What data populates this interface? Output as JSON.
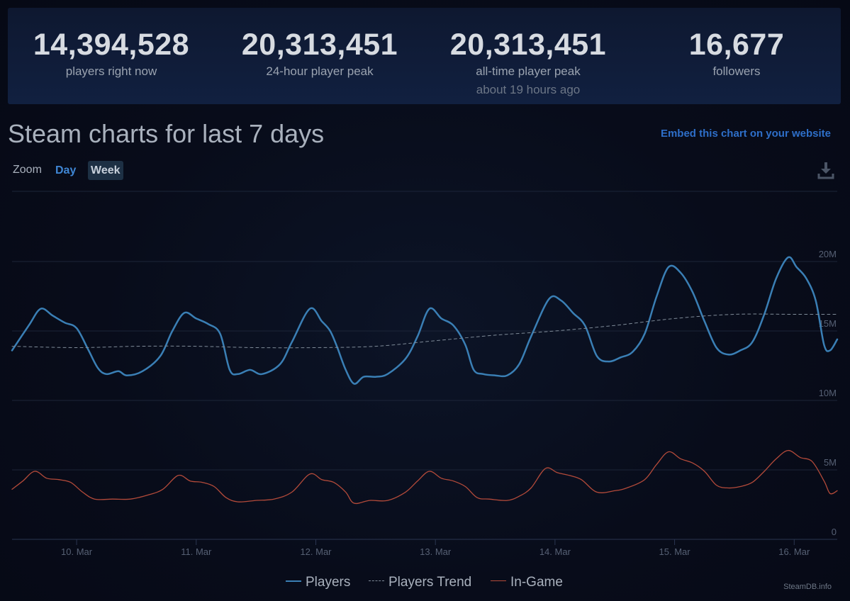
{
  "stats": [
    {
      "value": "14,394,528",
      "label": "players right now",
      "sub": ""
    },
    {
      "value": "20,313,451",
      "label": "24-hour player peak",
      "sub": ""
    },
    {
      "value": "20,313,451",
      "label": "all-time player peak",
      "sub": "about 19 hours ago"
    },
    {
      "value": "16,677",
      "label": "followers",
      "sub": ""
    }
  ],
  "header": {
    "title": "Steam charts for last 7 days",
    "embed_link": "Embed this chart on your website"
  },
  "zoom": {
    "label": "Zoom",
    "day": "Day",
    "week": "Week",
    "selected": "Week"
  },
  "icons": {
    "download": "download-icon"
  },
  "watermark": "SteamDB.info",
  "colors": {
    "players": "#3a7fb5",
    "trend": "#7f8b98",
    "ingame": "#b34a3a",
    "accent_link": "#2e6fc9"
  },
  "chart_data": {
    "type": "line",
    "title": "",
    "xlabel": "",
    "ylabel": "",
    "x_ticks": [
      "10. Mar",
      "11. Mar",
      "12. Mar",
      "13. Mar",
      "14. Mar",
      "15. Mar",
      "16. Mar"
    ],
    "y_ticks": [
      "0",
      "5M",
      "10M",
      "15M",
      "20M"
    ],
    "ylim": [
      0,
      20000000
    ],
    "x_unit": "days since 9. Mar 00:00",
    "xlim": [
      0.46,
      7.36
    ],
    "grid": true,
    "legend_position": "bottom-center",
    "series": [
      {
        "name": "Players",
        "style": "solid",
        "points": [
          [
            0.46,
            13.6
          ],
          [
            0.6,
            15.4
          ],
          [
            0.7,
            16.6
          ],
          [
            0.8,
            16.1
          ],
          [
            0.9,
            15.6
          ],
          [
            1.0,
            15.2
          ],
          [
            1.1,
            13.6
          ],
          [
            1.18,
            12.3
          ],
          [
            1.25,
            11.9
          ],
          [
            1.35,
            12.1
          ],
          [
            1.42,
            11.8
          ],
          [
            1.55,
            12.1
          ],
          [
            1.7,
            13.2
          ],
          [
            1.8,
            15.0
          ],
          [
            1.9,
            16.3
          ],
          [
            2.0,
            15.9
          ],
          [
            2.1,
            15.5
          ],
          [
            2.2,
            14.8
          ],
          [
            2.28,
            12.2
          ],
          [
            2.35,
            11.9
          ],
          [
            2.45,
            12.2
          ],
          [
            2.55,
            11.9
          ],
          [
            2.7,
            12.6
          ],
          [
            2.8,
            14.2
          ],
          [
            2.95,
            16.6
          ],
          [
            3.05,
            15.7
          ],
          [
            3.12,
            15.0
          ],
          [
            3.18,
            13.8
          ],
          [
            3.25,
            12.2
          ],
          [
            3.32,
            11.2
          ],
          [
            3.4,
            11.7
          ],
          [
            3.5,
            11.7
          ],
          [
            3.6,
            11.9
          ],
          [
            3.75,
            13.0
          ],
          [
            3.85,
            14.6
          ],
          [
            3.95,
            16.6
          ],
          [
            4.05,
            15.9
          ],
          [
            4.15,
            15.4
          ],
          [
            4.25,
            14.0
          ],
          [
            4.32,
            12.2
          ],
          [
            4.4,
            11.9
          ],
          [
            4.5,
            11.8
          ],
          [
            4.6,
            11.8
          ],
          [
            4.7,
            12.6
          ],
          [
            4.8,
            14.6
          ],
          [
            4.95,
            17.3
          ],
          [
            5.05,
            17.2
          ],
          [
            5.15,
            16.3
          ],
          [
            5.25,
            15.4
          ],
          [
            5.35,
            13.2
          ],
          [
            5.45,
            12.8
          ],
          [
            5.55,
            13.1
          ],
          [
            5.65,
            13.5
          ],
          [
            5.75,
            14.8
          ],
          [
            5.85,
            17.5
          ],
          [
            5.95,
            19.6
          ],
          [
            6.05,
            19.2
          ],
          [
            6.15,
            17.8
          ],
          [
            6.25,
            15.7
          ],
          [
            6.35,
            13.8
          ],
          [
            6.45,
            13.3
          ],
          [
            6.55,
            13.6
          ],
          [
            6.65,
            14.2
          ],
          [
            6.75,
            16.2
          ],
          [
            6.85,
            18.8
          ],
          [
            6.95,
            20.3
          ],
          [
            7.02,
            19.6
          ],
          [
            7.1,
            18.8
          ],
          [
            7.18,
            17.2
          ],
          [
            7.25,
            14.0
          ],
          [
            7.3,
            13.6
          ],
          [
            7.36,
            14.4
          ]
        ]
      },
      {
        "name": "Players Trend",
        "style": "dashed",
        "points": [
          [
            0.46,
            13.9
          ],
          [
            1.0,
            13.8
          ],
          [
            1.5,
            13.9
          ],
          [
            2.0,
            13.9
          ],
          [
            2.5,
            13.8
          ],
          [
            3.0,
            13.8
          ],
          [
            3.5,
            13.9
          ],
          [
            4.0,
            14.3
          ],
          [
            4.5,
            14.7
          ],
          [
            5.0,
            15.0
          ],
          [
            5.5,
            15.4
          ],
          [
            6.0,
            15.9
          ],
          [
            6.5,
            16.2
          ],
          [
            7.0,
            16.2
          ],
          [
            7.36,
            16.2
          ]
        ]
      },
      {
        "name": "In-Game",
        "style": "solid",
        "points": [
          [
            0.46,
            3.6
          ],
          [
            0.55,
            4.2
          ],
          [
            0.65,
            4.9
          ],
          [
            0.75,
            4.4
          ],
          [
            0.85,
            4.3
          ],
          [
            0.95,
            4.1
          ],
          [
            1.05,
            3.4
          ],
          [
            1.15,
            2.9
          ],
          [
            1.3,
            2.9
          ],
          [
            1.45,
            2.9
          ],
          [
            1.6,
            3.2
          ],
          [
            1.72,
            3.6
          ],
          [
            1.85,
            4.6
          ],
          [
            1.95,
            4.2
          ],
          [
            2.05,
            4.1
          ],
          [
            2.15,
            3.8
          ],
          [
            2.25,
            3.0
          ],
          [
            2.35,
            2.7
          ],
          [
            2.5,
            2.8
          ],
          [
            2.65,
            2.9
          ],
          [
            2.8,
            3.4
          ],
          [
            2.95,
            4.7
          ],
          [
            3.05,
            4.3
          ],
          [
            3.15,
            4.1
          ],
          [
            3.25,
            3.4
          ],
          [
            3.32,
            2.6
          ],
          [
            3.45,
            2.8
          ],
          [
            3.6,
            2.8
          ],
          [
            3.75,
            3.4
          ],
          [
            3.85,
            4.2
          ],
          [
            3.95,
            4.9
          ],
          [
            4.05,
            4.4
          ],
          [
            4.15,
            4.2
          ],
          [
            4.25,
            3.8
          ],
          [
            4.35,
            3.0
          ],
          [
            4.45,
            2.9
          ],
          [
            4.6,
            2.8
          ],
          [
            4.7,
            3.1
          ],
          [
            4.8,
            3.7
          ],
          [
            4.92,
            5.1
          ],
          [
            5.02,
            4.8
          ],
          [
            5.12,
            4.6
          ],
          [
            5.22,
            4.3
          ],
          [
            5.35,
            3.4
          ],
          [
            5.5,
            3.5
          ],
          [
            5.6,
            3.7
          ],
          [
            5.75,
            4.3
          ],
          [
            5.85,
            5.4
          ],
          [
            5.95,
            6.3
          ],
          [
            6.05,
            5.8
          ],
          [
            6.15,
            5.5
          ],
          [
            6.25,
            4.9
          ],
          [
            6.35,
            3.9
          ],
          [
            6.45,
            3.7
          ],
          [
            6.55,
            3.8
          ],
          [
            6.65,
            4.1
          ],
          [
            6.75,
            4.9
          ],
          [
            6.85,
            5.8
          ],
          [
            6.95,
            6.4
          ],
          [
            7.05,
            5.9
          ],
          [
            7.15,
            5.6
          ],
          [
            7.25,
            4.2
          ],
          [
            7.3,
            3.3
          ],
          [
            7.36,
            3.5
          ]
        ]
      }
    ]
  }
}
